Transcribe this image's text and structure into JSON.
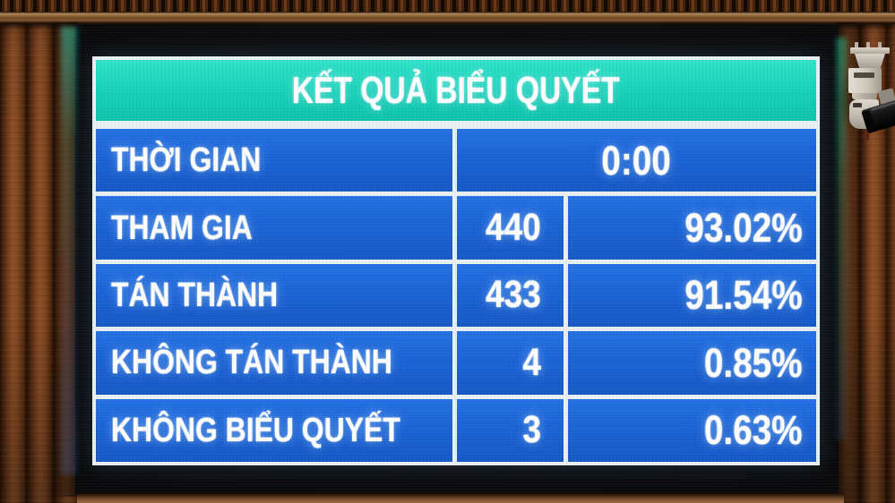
{
  "chart_data": {
    "type": "table",
    "title": "KẾT QUẢ BIỂU QUYẾT",
    "rows": [
      {
        "label": "THỜI GIAN",
        "value": "0:00"
      },
      {
        "label": "THAM GIA",
        "count": "440",
        "percent": "93.02%"
      },
      {
        "label": "TÁN THÀNH",
        "count": "433",
        "percent": "91.54%"
      },
      {
        "label": "KHÔNG TÁN THÀNH",
        "count": "4",
        "percent": "0.85%"
      },
      {
        "label": "KHÔNG BIỂU QUYẾT",
        "count": "3",
        "percent": "0.63%"
      }
    ]
  },
  "board": {
    "colors": {
      "header_bg": "#18d4ba",
      "row_bg": "#1b64d8",
      "grid": "#e9f0f3",
      "text": "#ffffff",
      "screen": "#08080a"
    }
  },
  "scene": {
    "objects": [
      "wood-paneled-wall",
      "led-display-screen",
      "security-camera"
    ]
  }
}
